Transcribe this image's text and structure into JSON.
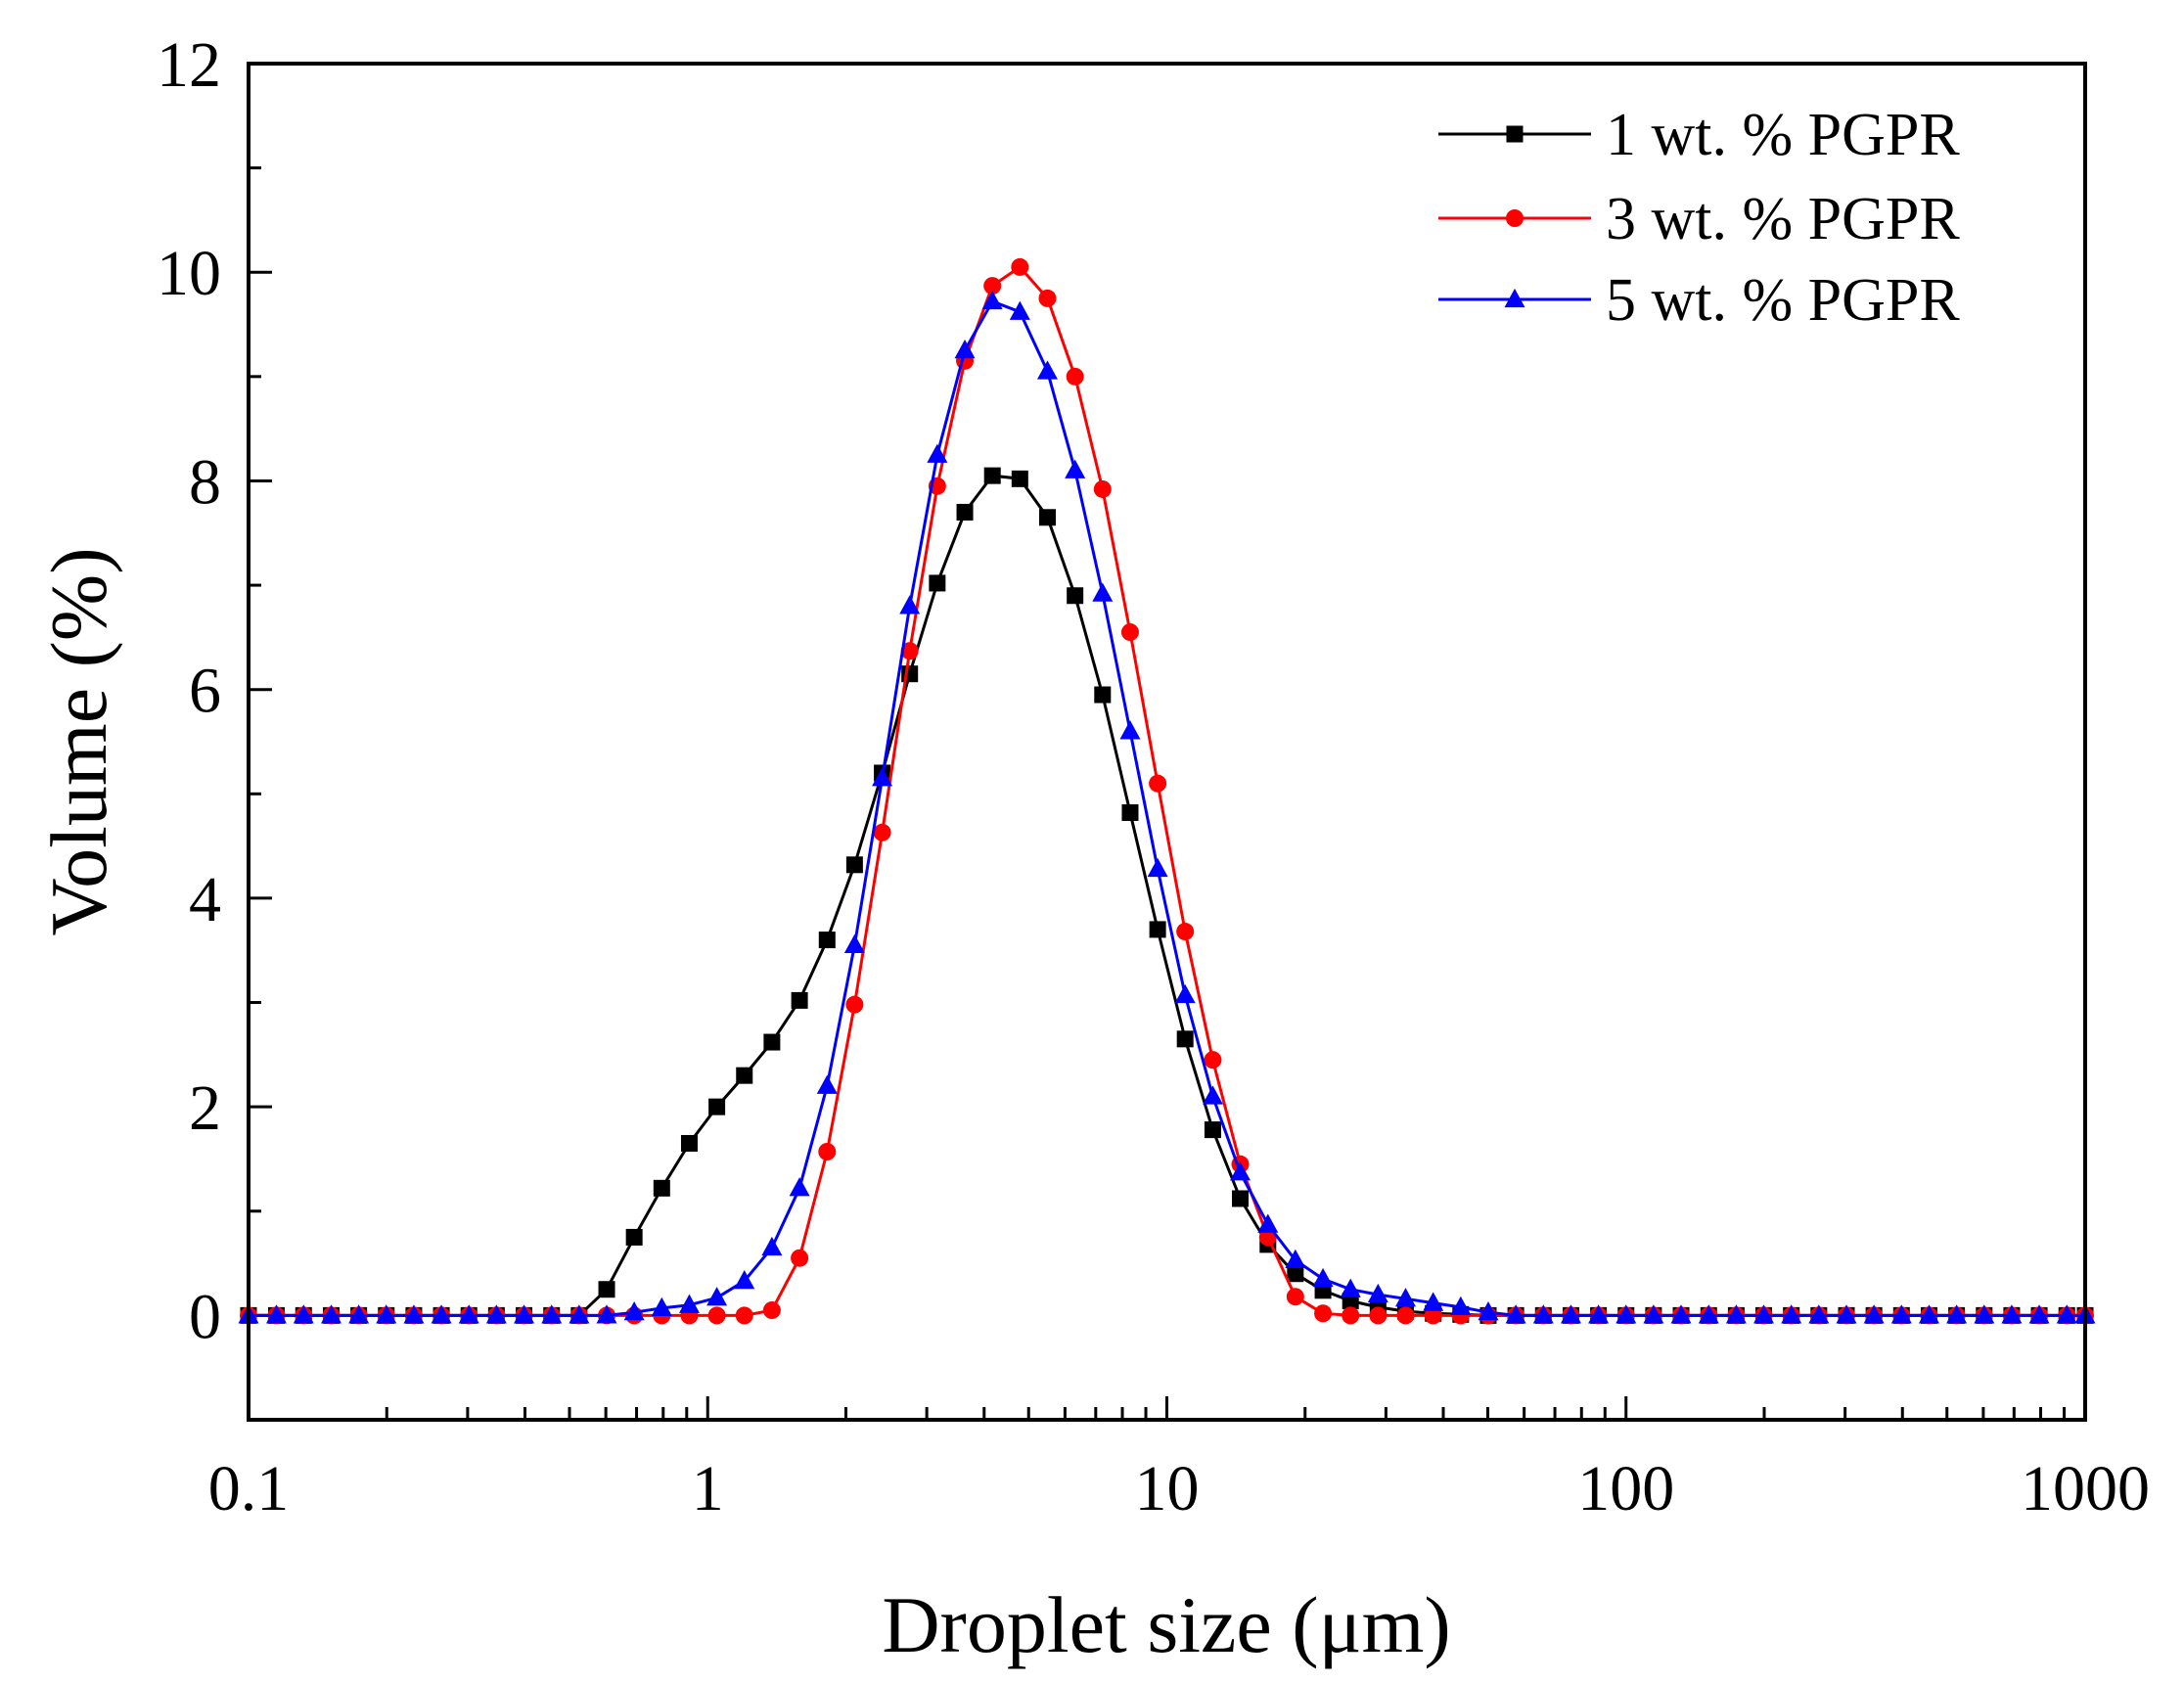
{
  "chart_data": {
    "type": "line",
    "title": "",
    "xlabel": "Droplet size (μm)",
    "ylabel": "Volume (%)",
    "x_scale": "log",
    "xlim": [
      0.1,
      1000
    ],
    "ylim": [
      -1,
      12
    ],
    "x_ticks": [
      "0.1",
      "1",
      "10",
      "100",
      "1000"
    ],
    "y_ticks": [
      "0",
      "2",
      "4",
      "6",
      "8",
      "10",
      "12"
    ],
    "grid": false,
    "legend_position": "top-right",
    "x": [
      0.1,
      0.115,
      0.1318,
      0.1514,
      0.1738,
      0.1995,
      0.2291,
      0.263,
      0.302,
      0.3467,
      0.3981,
      0.4571,
      0.5248,
      0.6026,
      0.6918,
      0.7943,
      0.912,
      1.047,
      1.202,
      1.38,
      1.585,
      1.82,
      2.089,
      2.399,
      2.754,
      3.162,
      3.631,
      4.169,
      4.786,
      5.495,
      6.31,
      7.244,
      8.318,
      9.55,
      10.96,
      12.59,
      14.45,
      16.6,
      19.05,
      21.88,
      25.12,
      28.84,
      33.11,
      38.02,
      43.65,
      50.12,
      57.54,
      66.07,
      75.86,
      87.1,
      100,
      114.8,
      131.8,
      151.4,
      173.8,
      199.5,
      229.1,
      263,
      302,
      346.7,
      398.1,
      457.1,
      524.8,
      602.6,
      691.8,
      794.3,
      912,
      1000
    ],
    "series": [
      {
        "name": "1 wt. % PGPR",
        "color": "#000000",
        "marker": "square",
        "values": [
          0,
          0,
          0,
          0,
          0,
          0,
          0,
          0,
          0,
          0,
          0,
          0,
          0,
          0.25,
          0.75,
          1.22,
          1.65,
          2.0,
          2.3,
          2.62,
          3.02,
          3.6,
          4.32,
          5.2,
          6.15,
          7.02,
          7.7,
          8.05,
          8.02,
          7.65,
          6.9,
          5.95,
          4.82,
          3.7,
          2.65,
          1.78,
          1.12,
          0.68,
          0.4,
          0.24,
          0.14,
          0.08,
          0.04,
          0.02,
          0.01,
          0,
          0,
          0,
          0,
          0,
          0,
          0,
          0,
          0,
          0,
          0,
          0,
          0,
          0,
          0,
          0,
          0,
          0,
          0,
          0,
          0,
          0,
          0
        ]
      },
      {
        "name": "3 wt. % PGPR",
        "color": "#ff0000",
        "marker": "circle",
        "values": [
          0,
          0,
          0,
          0,
          0,
          0,
          0,
          0,
          0,
          0,
          0,
          0,
          0,
          0,
          0,
          0,
          0,
          0,
          0,
          0.05,
          0.55,
          1.57,
          2.98,
          4.63,
          6.37,
          7.95,
          9.15,
          9.87,
          10.05,
          9.75,
          9.0,
          7.92,
          6.55,
          5.1,
          3.68,
          2.45,
          1.45,
          0.75,
          0.18,
          0.02,
          0,
          0,
          0,
          0,
          0,
          0,
          0,
          0,
          0,
          0,
          0,
          0,
          0,
          0,
          0,
          0,
          0,
          0,
          0,
          0,
          0,
          0,
          0,
          0,
          0,
          0,
          0,
          0
        ]
      },
      {
        "name": "5 wt. % PGPR",
        "color": "#0000ff",
        "marker": "triangle",
        "values": [
          0,
          0,
          0,
          0,
          0,
          0,
          0,
          0,
          0,
          0,
          0,
          0,
          0,
          0,
          0.03,
          0.07,
          0.1,
          0.17,
          0.33,
          0.65,
          1.22,
          2.2,
          3.55,
          5.15,
          6.8,
          8.25,
          9.25,
          9.72,
          9.62,
          9.05,
          8.1,
          6.92,
          5.6,
          4.28,
          3.07,
          2.1,
          1.37,
          0.87,
          0.53,
          0.35,
          0.25,
          0.2,
          0.16,
          0.12,
          0.08,
          0.03,
          0,
          0,
          0,
          0,
          0,
          0,
          0,
          0,
          0,
          0,
          0,
          0,
          0,
          0,
          0,
          0,
          0,
          0,
          0,
          0,
          0,
          0
        ]
      }
    ]
  }
}
